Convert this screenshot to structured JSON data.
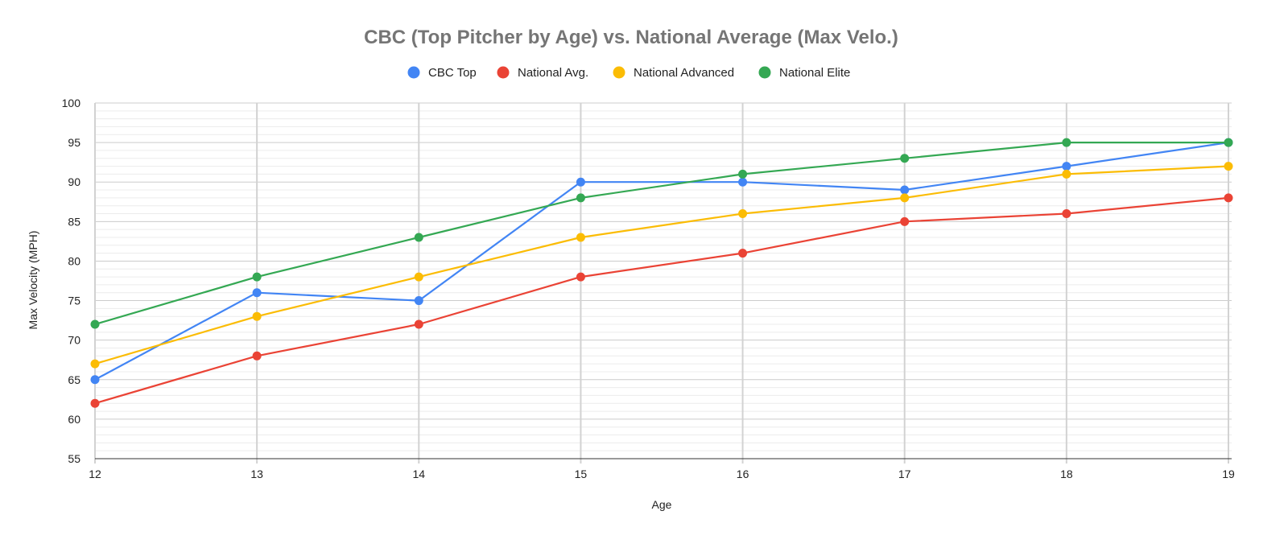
{
  "chart_data": {
    "type": "line",
    "title": "CBC (Top Pitcher by Age) vs. National Average (Max Velo.)",
    "xlabel": "Age",
    "ylabel": "Max Velocity (MPH)",
    "x": [
      12,
      13,
      14,
      15,
      16,
      17,
      18,
      19
    ],
    "x_tick_labels": [
      "12",
      "13",
      "14",
      "15",
      "16",
      "17",
      "18",
      "19"
    ],
    "ylim": [
      55,
      100
    ],
    "y_ticks": [
      55,
      60,
      65,
      70,
      75,
      80,
      85,
      90,
      95,
      100
    ],
    "y_tick_labels": [
      "55",
      "60",
      "65",
      "70",
      "75",
      "80",
      "85",
      "90",
      "95",
      "100"
    ],
    "y_minor_step": 1,
    "grid": true,
    "legend_position": "top",
    "series": [
      {
        "name": "CBC Top",
        "color": "#4285F4",
        "values": [
          65,
          76,
          75,
          90,
          90,
          89,
          92,
          95
        ]
      },
      {
        "name": "National Avg.",
        "color": "#EA4335",
        "values": [
          62,
          68,
          72,
          78,
          81,
          85,
          86,
          88
        ]
      },
      {
        "name": "National Advanced",
        "color": "#FBBC04",
        "values": [
          67,
          73,
          78,
          83,
          86,
          88,
          91,
          92
        ]
      },
      {
        "name": "National Elite",
        "color": "#34A853",
        "values": [
          72,
          78,
          83,
          88,
          91,
          93,
          95,
          95
        ]
      }
    ]
  }
}
